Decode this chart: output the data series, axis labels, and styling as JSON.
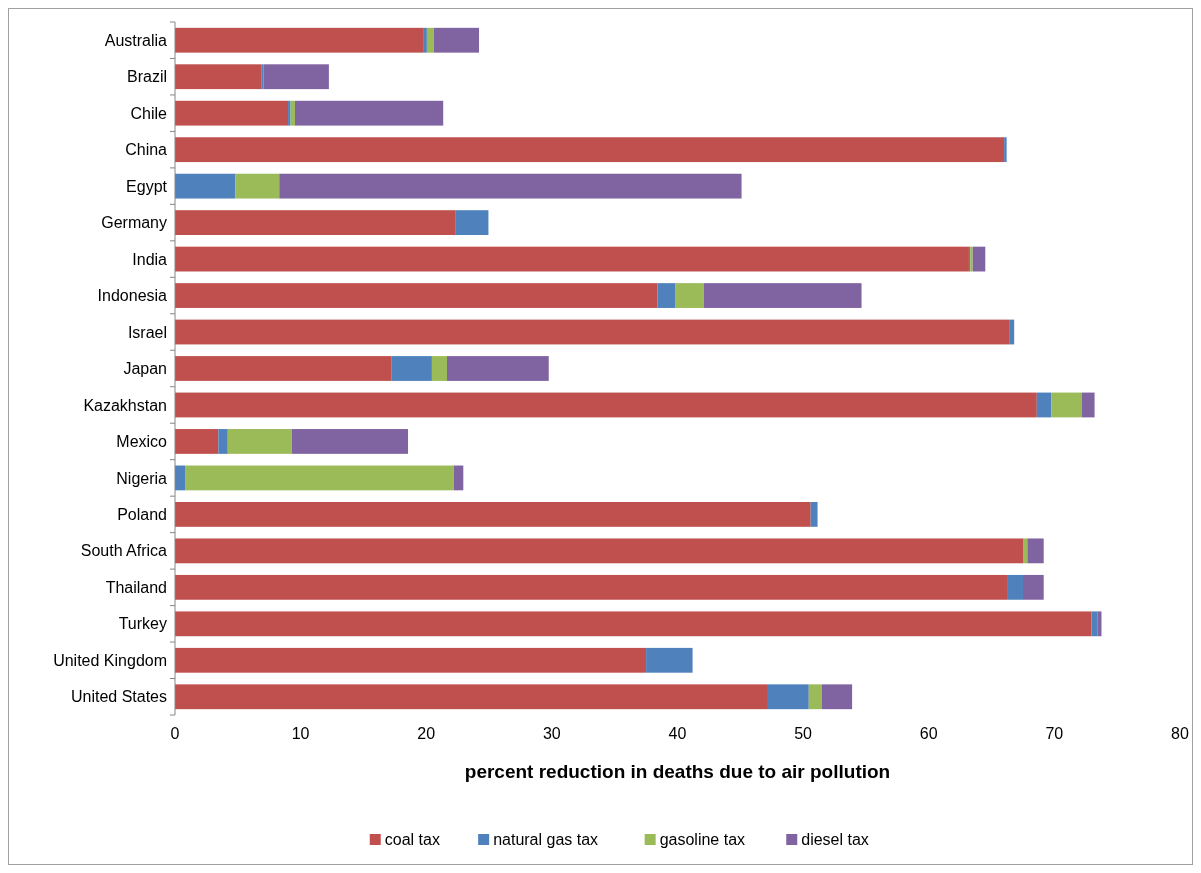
{
  "chart_data": {
    "type": "bar",
    "orientation": "horizontal",
    "stacked": true,
    "xlabel": "percent reduction in deaths due to air pollution",
    "categories": [
      "Australia",
      "Brazil",
      "Chile",
      "China",
      "Egypt",
      "Germany",
      "India",
      "Indonesia",
      "Israel",
      "Japan",
      "Kazakhstan",
      "Mexico",
      "Nigeria",
      "Poland",
      "South Africa",
      "Thailand",
      "Turkey",
      "United Kingdom",
      "United States"
    ],
    "series": [
      {
        "name": "coal tax",
        "color": "#c0504d",
        "values": [
          19.75,
          6.9,
          9.0,
          66.0,
          null,
          22.3,
          63.2,
          38.4,
          66.4,
          17.25,
          68.6,
          3.45,
          null,
          50.6,
          67.55,
          66.3,
          72.95,
          37.5,
          47.2
        ]
      },
      {
        "name": "natural gas tax",
        "color": "#4f81bd",
        "values": [
          0.3,
          0.15,
          0.2,
          0.2,
          4.8,
          2.65,
          0.1,
          1.45,
          0.4,
          3.2,
          1.15,
          0.75,
          0.8,
          0.55,
          null,
          1.2,
          0.5,
          3.7,
          3.25
        ]
      },
      {
        "name": "gasoline tax",
        "color": "#9bbb59",
        "values": [
          0.55,
          null,
          0.35,
          null,
          3.5,
          null,
          0.2,
          2.25,
          null,
          1.2,
          2.45,
          5.1,
          21.4,
          null,
          0.3,
          null,
          null,
          null,
          1.05
        ]
      },
      {
        "name": "diesel tax",
        "color": "#8064a2",
        "values": [
          3.6,
          5.2,
          11.8,
          null,
          36.8,
          null,
          1.0,
          12.55,
          null,
          8.1,
          1.0,
          9.25,
          0.75,
          null,
          1.3,
          1.65,
          0.3,
          null,
          2.4
        ]
      }
    ],
    "xlim": [
      0,
      80
    ],
    "xticks": [
      0,
      10,
      20,
      30,
      40,
      50,
      60,
      70,
      80
    ],
    "legend": "bottom",
    "grid": false
  }
}
